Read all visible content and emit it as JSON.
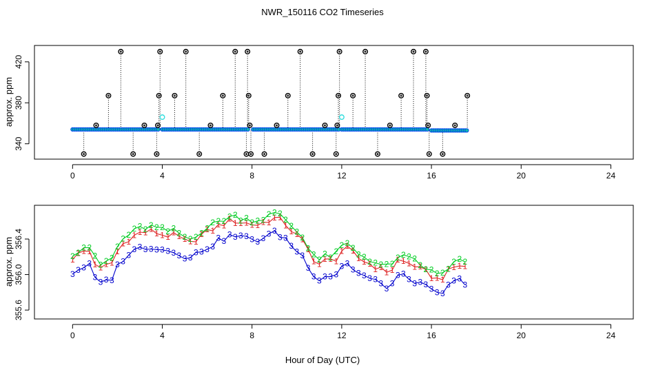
{
  "title": "NWR_150116  CO2 Timeseries",
  "xlabel": "Hour of Day (UTC)",
  "colors": {
    "axis": "#000000",
    "stem": "#000000",
    "outlier": "#000000",
    "flat": "#0044ee",
    "flat_fill": "#11bbaa",
    "cyan": "#33dddd",
    "series1": "#dd2222",
    "series2": "#00cc22",
    "series3": "#0000cc"
  },
  "chart_data": [
    {
      "type": "scatter",
      "panel": "top",
      "ylabel": "approx. ppm",
      "xlim": [
        -1.7,
        25
      ],
      "ylim": [
        325,
        436
      ],
      "xticks": [
        0,
        4,
        8,
        12,
        16,
        20,
        24
      ],
      "yticks": [
        340,
        380,
        420
      ],
      "xtick_labels": [
        "0",
        "4",
        "8",
        "12",
        "16",
        "20",
        "24"
      ],
      "ytick_labels": [
        "340",
        "380",
        "420"
      ],
      "baseline": 354,
      "flat_segments": [
        {
          "name": "segment-1",
          "x_start": 0.0,
          "x_end": 3.85,
          "y": 354
        },
        {
          "name": "segment-2",
          "x_start": 4.0,
          "x_end": 7.9,
          "y": 354
        },
        {
          "name": "segment-3",
          "x_start": 8.05,
          "x_end": 11.95,
          "y": 354
        },
        {
          "name": "segment-4",
          "x_start": 12.0,
          "x_end": 15.9,
          "y": 354
        },
        {
          "name": "segment-5",
          "x_start": 16.0,
          "x_end": 17.65,
          "y": 353
        }
      ],
      "outliers": [
        {
          "x": 0.5,
          "y": 330
        },
        {
          "x": 1.05,
          "y": 358
        },
        {
          "x": 1.6,
          "y": 387
        },
        {
          "x": 2.15,
          "y": 430
        },
        {
          "x": 2.7,
          "y": 330
        },
        {
          "x": 3.2,
          "y": 358
        },
        {
          "x": 3.75,
          "y": 330
        },
        {
          "x": 3.8,
          "y": 358
        },
        {
          "x": 3.85,
          "y": 387
        },
        {
          "x": 3.9,
          "y": 430
        },
        {
          "x": 4.55,
          "y": 387
        },
        {
          "x": 5.05,
          "y": 430
        },
        {
          "x": 5.65,
          "y": 330
        },
        {
          "x": 6.15,
          "y": 358
        },
        {
          "x": 6.7,
          "y": 387
        },
        {
          "x": 7.25,
          "y": 430
        },
        {
          "x": 7.75,
          "y": 330
        },
        {
          "x": 7.8,
          "y": 430
        },
        {
          "x": 7.85,
          "y": 387
        },
        {
          "x": 7.9,
          "y": 358
        },
        {
          "x": 7.95,
          "y": 330
        },
        {
          "x": 8.55,
          "y": 330
        },
        {
          "x": 9.1,
          "y": 358
        },
        {
          "x": 9.6,
          "y": 387
        },
        {
          "x": 10.15,
          "y": 430
        },
        {
          "x": 10.7,
          "y": 330
        },
        {
          "x": 11.25,
          "y": 358
        },
        {
          "x": 11.75,
          "y": 330
        },
        {
          "x": 11.8,
          "y": 358
        },
        {
          "x": 11.85,
          "y": 387
        },
        {
          "x": 11.9,
          "y": 430
        },
        {
          "x": 12.5,
          "y": 387
        },
        {
          "x": 13.05,
          "y": 430
        },
        {
          "x": 13.6,
          "y": 330
        },
        {
          "x": 14.15,
          "y": 358
        },
        {
          "x": 14.65,
          "y": 387
        },
        {
          "x": 15.2,
          "y": 430
        },
        {
          "x": 15.75,
          "y": 430
        },
        {
          "x": 15.8,
          "y": 387
        },
        {
          "x": 15.85,
          "y": 358
        },
        {
          "x": 15.9,
          "y": 330
        },
        {
          "x": 16.5,
          "y": 330
        },
        {
          "x": 17.05,
          "y": 358
        },
        {
          "x": 17.6,
          "y": 387
        }
      ],
      "cyan_points": [
        {
          "x": 4.0,
          "y": 366
        },
        {
          "x": 12.0,
          "y": 366
        }
      ]
    },
    {
      "type": "line",
      "panel": "bottom",
      "ylabel": "approx. ppm",
      "xlim": [
        -1.7,
        25
      ],
      "ylim": [
        355.5,
        356.78
      ],
      "xticks": [
        0,
        4,
        8,
        12,
        16,
        20,
        24
      ],
      "yticks": [
        355.6,
        356.0,
        356.4
      ],
      "xtick_labels": [
        "0",
        "4",
        "8",
        "12",
        "16",
        "20",
        "24"
      ],
      "ytick_labels": [
        "355.6",
        "356.0",
        "356.4"
      ],
      "anchors": {
        "x": [
          0.0,
          0.35,
          0.7,
          0.9,
          1.15,
          1.45,
          1.8,
          2.05,
          2.4,
          3.0,
          3.55,
          4.1,
          4.6,
          5.2,
          5.7,
          6.1,
          6.6,
          7.1,
          7.5,
          7.9,
          8.3,
          8.7,
          9.1,
          9.5,
          9.9,
          10.3,
          10.65,
          10.95,
          11.3,
          11.7,
          12.0,
          12.3,
          12.7,
          13.1,
          13.5,
          13.85,
          14.2,
          14.5,
          14.8,
          15.2,
          15.6,
          15.9,
          16.15,
          16.5,
          16.8,
          17.15,
          17.45,
          17.65
        ],
        "y": [
          356.19,
          356.24,
          356.29,
          356.19,
          356.04,
          356.09,
          356.14,
          356.29,
          356.39,
          356.47,
          356.49,
          356.44,
          356.44,
          356.34,
          356.44,
          356.49,
          356.56,
          356.61,
          356.59,
          356.57,
          356.56,
          356.61,
          356.64,
          356.57,
          356.46,
          356.36,
          356.21,
          356.11,
          356.16,
          356.16,
          356.27,
          356.29,
          356.19,
          356.14,
          356.09,
          356.04,
          356.04,
          356.16,
          356.14,
          356.11,
          356.04,
          356.01,
          355.94,
          355.97,
          356.04,
          356.11,
          356.09,
          356.07
        ]
      },
      "series": [
        {
          "name": "1",
          "label": "1",
          "offset": 0.0
        },
        {
          "name": "2",
          "label": "2",
          "offset": 0.05
        },
        {
          "name": "3",
          "label": "3",
          "offset": -0.17
        }
      ]
    }
  ]
}
